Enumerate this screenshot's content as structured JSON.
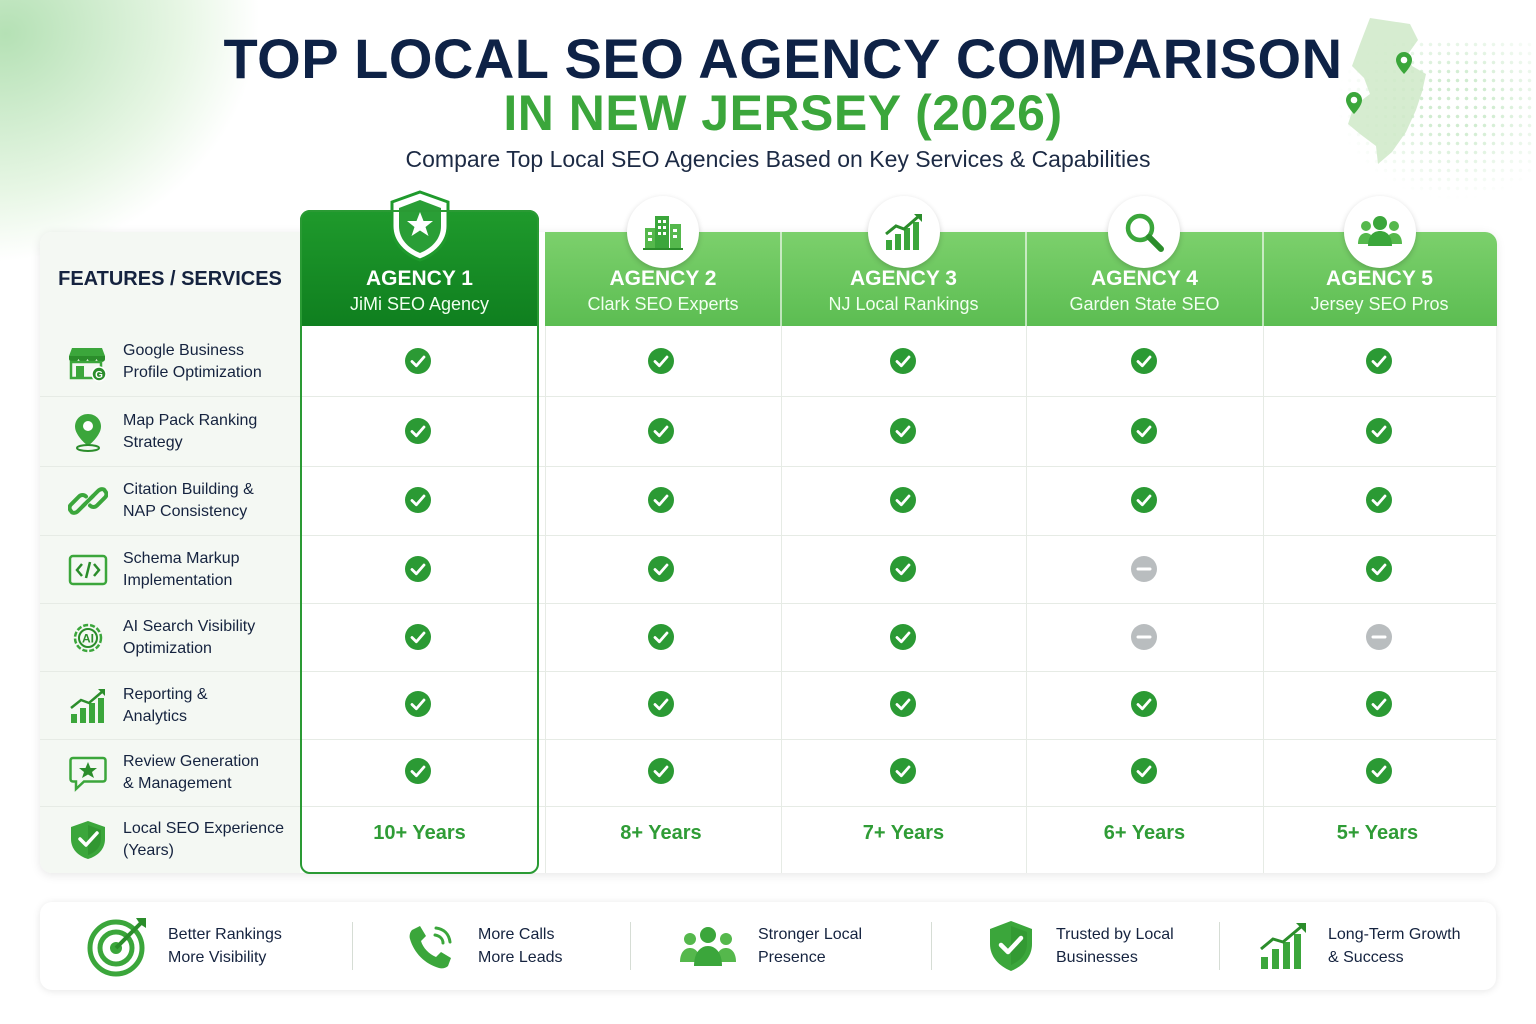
{
  "header": {
    "title_line1": "TOP LOCAL SEO AGENCY COMPARISON",
    "title_line2": "IN NEW JERSEY (2026)",
    "subtitle": "Compare Top Local SEO Agencies Based on Key Services & Capabilities"
  },
  "table": {
    "features_header": "FEATURES / SERVICES",
    "agencies": [
      {
        "label": "AGENCY 1",
        "name": "JiMi SEO Agency",
        "icon": "shield-star-icon",
        "experience": "10+ Years"
      },
      {
        "label": "AGENCY 2",
        "name": "Clark SEO Experts",
        "icon": "buildings-icon",
        "experience": "8+ Years"
      },
      {
        "label": "AGENCY 3",
        "name": "NJ Local Rankings",
        "icon": "growth-chart-icon",
        "experience": "7+ Years"
      },
      {
        "label": "AGENCY 4",
        "name": "Garden State SEO",
        "icon": "magnifier-icon",
        "experience": "6+ Years"
      },
      {
        "label": "AGENCY 5",
        "name": "Jersey SEO Pros",
        "icon": "people-group-icon",
        "experience": "5+ Years"
      }
    ],
    "features": [
      {
        "line1": "Google Business",
        "line2": "Profile Optimization",
        "icon": "storefront-icon",
        "support": [
          "yes",
          "yes",
          "yes",
          "yes",
          "yes"
        ]
      },
      {
        "line1": "Map Pack Ranking",
        "line2": "Strategy",
        "icon": "map-pin-icon",
        "support": [
          "yes",
          "yes",
          "yes",
          "yes",
          "yes"
        ]
      },
      {
        "line1": "Citation Building &",
        "line2": "NAP Consistency",
        "icon": "link-icon",
        "support": [
          "yes",
          "yes",
          "yes",
          "yes",
          "yes"
        ]
      },
      {
        "line1": "Schema Markup",
        "line2": "Implementation",
        "icon": "code-icon",
        "support": [
          "yes",
          "yes",
          "yes",
          "no",
          "yes"
        ]
      },
      {
        "line1": "AI Search Visibility",
        "line2": "Optimization",
        "icon": "ai-chip-icon",
        "support": [
          "yes",
          "yes",
          "yes",
          "no",
          "no"
        ]
      },
      {
        "line1": "Reporting &",
        "line2": "Analytics",
        "icon": "bar-chart-icon",
        "support": [
          "yes",
          "yes",
          "yes",
          "yes",
          "yes"
        ]
      },
      {
        "line1": "Review Generation",
        "line2": "& Management",
        "icon": "review-star-icon",
        "support": [
          "yes",
          "yes",
          "yes",
          "yes",
          "yes"
        ]
      },
      {
        "line1": "Local SEO Experience",
        "line2": "(Years)",
        "icon": "shield-check-icon",
        "support": null
      }
    ]
  },
  "benefits": [
    {
      "line1": "Better Rankings",
      "line2": "More Visibility",
      "icon": "target-icon"
    },
    {
      "line1": "More Calls",
      "line2": "More Leads",
      "icon": "phone-icon"
    },
    {
      "line1": "Stronger Local",
      "line2": "Presence",
      "icon": "team-icon"
    },
    {
      "line1": "Trusted by Local",
      "line2": "Businesses",
      "icon": "shield-check-icon"
    },
    {
      "line1": "Long-Term Growth",
      "line2": "& Success",
      "icon": "growth-chart-icon"
    }
  ],
  "colors": {
    "navy": "#0e2246",
    "brand_green": "#3ba63b",
    "dark_green": "#0f7f1f",
    "light_green": "#6cc75f",
    "check_green": "#2b9a34",
    "dash_gray": "#b9bdbf"
  }
}
